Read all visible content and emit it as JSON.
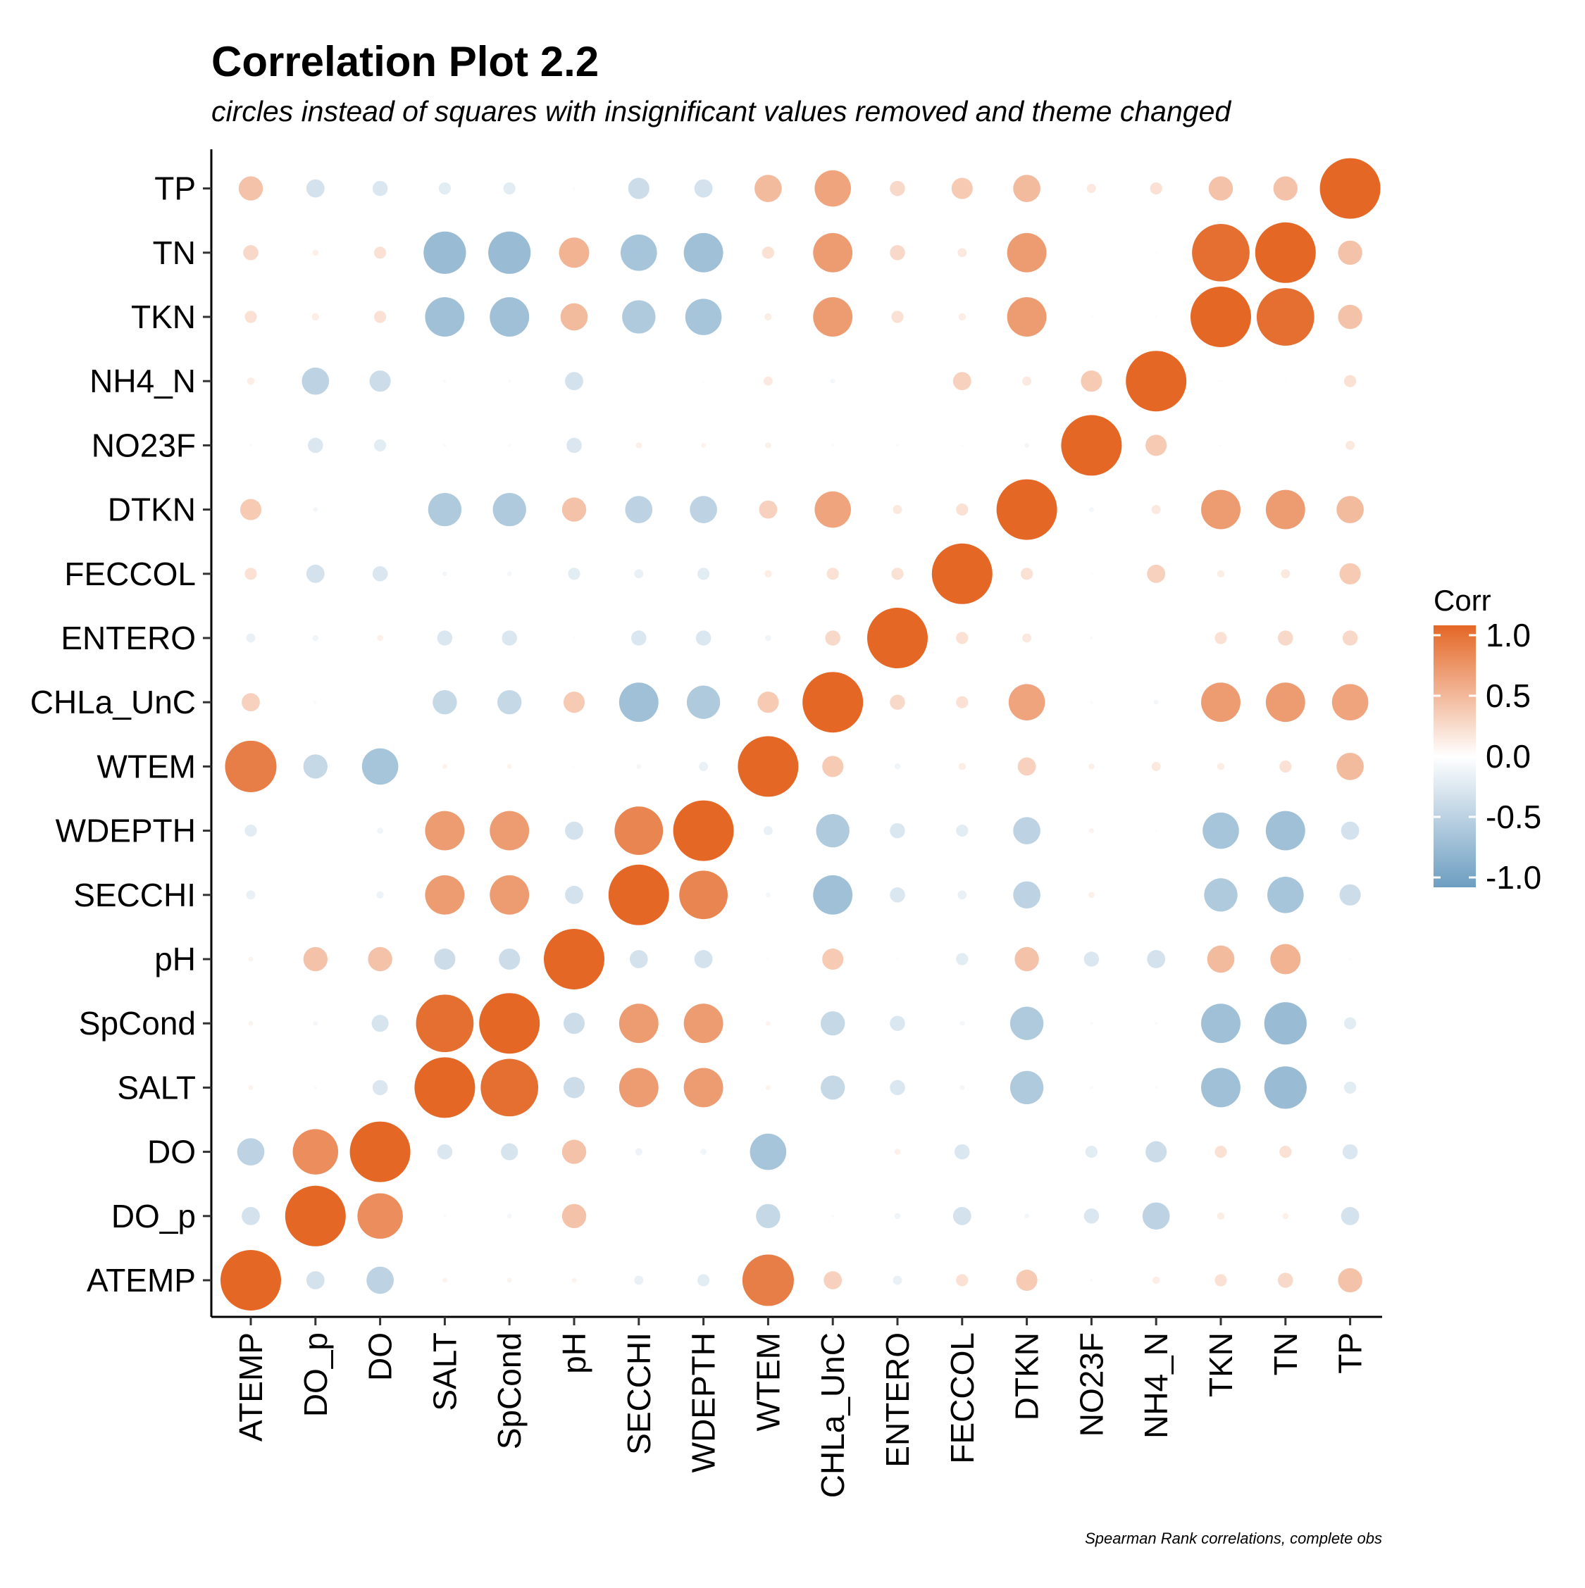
{
  "chart_data": {
    "type": "heatmap",
    "marker": "circle",
    "title": "Correlation Plot 2.2",
    "subtitle": "circles instead of squares with insignificant values removed and theme changed",
    "caption": "Spearman Rank correlations, complete obs",
    "variables": [
      "ATEMP",
      "DO_p",
      "DO",
      "SALT",
      "SpCond",
      "pH",
      "SECCHI",
      "WDEPTH",
      "WTEM",
      "CHLa_UnC",
      "ENTERO",
      "FECCOL",
      "DTKN",
      "NO23F",
      "NH4_N",
      "TKN",
      "TN",
      "TP"
    ],
    "legend": {
      "title": "Corr",
      "ticks": [
        "1.0",
        "0.5",
        "0.0",
        "-0.5",
        "-1.0"
      ],
      "tick_values": [
        1.0,
        0.5,
        0.0,
        -0.5,
        -1.0
      ],
      "position": "right"
    },
    "scale": {
      "low_color": "#6D9EC1",
      "mid_color": "#FFFFFF",
      "high_color": "#E46726",
      "limits": [
        -1,
        1
      ]
    },
    "matrix_rows_note": "rows listed bottom-to-top in same order as variables; null = insignificant (removed)",
    "matrix": [
      [
        1.0,
        -0.3,
        -0.45,
        0.08,
        0.08,
        0.08,
        -0.15,
        -0.2,
        0.85,
        0.3,
        -0.15,
        0.2,
        0.35,
        -0.05,
        0.12,
        0.2,
        0.25,
        0.4
      ],
      [
        -0.3,
        1.0,
        0.75,
        -0.05,
        -0.08,
        0.4,
        null,
        null,
        -0.4,
        -0.05,
        -0.1,
        -0.3,
        -0.08,
        -0.25,
        -0.45,
        0.12,
        0.1,
        -0.3
      ],
      [
        -0.45,
        0.75,
        1.0,
        -0.25,
        -0.28,
        0.4,
        -0.12,
        -0.1,
        -0.6,
        null,
        0.1,
        -0.25,
        null,
        -0.2,
        -0.35,
        0.2,
        0.2,
        -0.25
      ],
      [
        0.08,
        -0.05,
        -0.25,
        1.0,
        0.95,
        -0.35,
        0.65,
        0.65,
        0.08,
        -0.4,
        -0.25,
        -0.08,
        -0.55,
        -0.05,
        -0.05,
        -0.65,
        -0.7,
        -0.2
      ],
      [
        0.08,
        -0.08,
        -0.28,
        0.95,
        1.0,
        -0.35,
        0.65,
        0.65,
        0.08,
        -0.4,
        -0.25,
        -0.08,
        -0.55,
        -0.05,
        -0.05,
        -0.65,
        -0.7,
        -0.2
      ],
      [
        0.08,
        0.4,
        0.4,
        -0.35,
        -0.35,
        1.0,
        -0.3,
        -0.3,
        -0.03,
        0.35,
        -0.03,
        -0.2,
        0.4,
        -0.25,
        -0.3,
        0.45,
        0.5,
        0.03
      ],
      [
        -0.15,
        null,
        -0.12,
        0.65,
        0.65,
        -0.3,
        1.0,
        0.8,
        -0.08,
        -0.65,
        -0.25,
        -0.15,
        -0.45,
        0.1,
        null,
        -0.55,
        -0.6,
        -0.35
      ],
      [
        -0.2,
        null,
        -0.1,
        0.65,
        0.65,
        -0.3,
        0.8,
        1.0,
        -0.15,
        -0.55,
        -0.25,
        -0.2,
        -0.45,
        0.08,
        -0.03,
        -0.6,
        -0.65,
        -0.3
      ],
      [
        0.85,
        -0.4,
        -0.6,
        0.08,
        0.08,
        -0.03,
        -0.08,
        -0.15,
        1.0,
        0.35,
        -0.1,
        0.12,
        0.3,
        0.1,
        0.15,
        0.12,
        0.2,
        0.45
      ],
      [
        0.3,
        -0.05,
        null,
        -0.4,
        -0.4,
        0.35,
        -0.65,
        -0.55,
        0.35,
        1.0,
        0.25,
        0.2,
        0.6,
        0.03,
        -0.08,
        0.65,
        0.65,
        0.6
      ],
      [
        -0.15,
        -0.1,
        0.1,
        -0.25,
        -0.25,
        -0.03,
        -0.25,
        -0.25,
        -0.1,
        0.25,
        1.0,
        0.2,
        0.15,
        -0.05,
        null,
        0.2,
        0.25,
        0.25
      ],
      [
        0.2,
        -0.3,
        -0.25,
        -0.08,
        -0.08,
        -0.2,
        -0.15,
        -0.2,
        0.12,
        0.2,
        0.2,
        1.0,
        0.2,
        -0.03,
        0.3,
        0.12,
        0.15,
        0.35
      ],
      [
        0.35,
        -0.08,
        null,
        -0.55,
        -0.55,
        0.4,
        -0.45,
        -0.45,
        0.3,
        0.6,
        0.15,
        0.2,
        1.0,
        -0.08,
        0.15,
        0.65,
        0.65,
        0.45
      ],
      [
        -0.05,
        -0.25,
        -0.2,
        -0.05,
        -0.05,
        -0.25,
        0.1,
        0.08,
        0.1,
        0.03,
        -0.05,
        -0.03,
        -0.08,
        1.0,
        0.35,
        0.02,
        null,
        0.15
      ],
      [
        0.12,
        -0.45,
        -0.35,
        -0.05,
        -0.05,
        -0.3,
        null,
        -0.03,
        0.15,
        -0.08,
        null,
        0.3,
        0.15,
        0.35,
        1.0,
        -0.03,
        -0.02,
        0.2
      ],
      [
        0.2,
        0.12,
        0.2,
        -0.65,
        -0.65,
        0.45,
        -0.55,
        -0.6,
        0.12,
        0.65,
        0.2,
        0.12,
        0.65,
        0.02,
        -0.03,
        1.0,
        0.95,
        0.4
      ],
      [
        0.25,
        0.1,
        0.2,
        -0.7,
        -0.7,
        0.5,
        -0.6,
        -0.65,
        0.2,
        0.65,
        0.25,
        0.15,
        0.65,
        null,
        -0.02,
        0.95,
        1.0,
        0.4
      ],
      [
        0.4,
        -0.3,
        -0.25,
        -0.2,
        -0.2,
        0.03,
        -0.35,
        -0.3,
        0.45,
        0.6,
        0.25,
        0.35,
        0.45,
        0.15,
        0.2,
        0.4,
        0.4,
        1.0
      ]
    ]
  }
}
